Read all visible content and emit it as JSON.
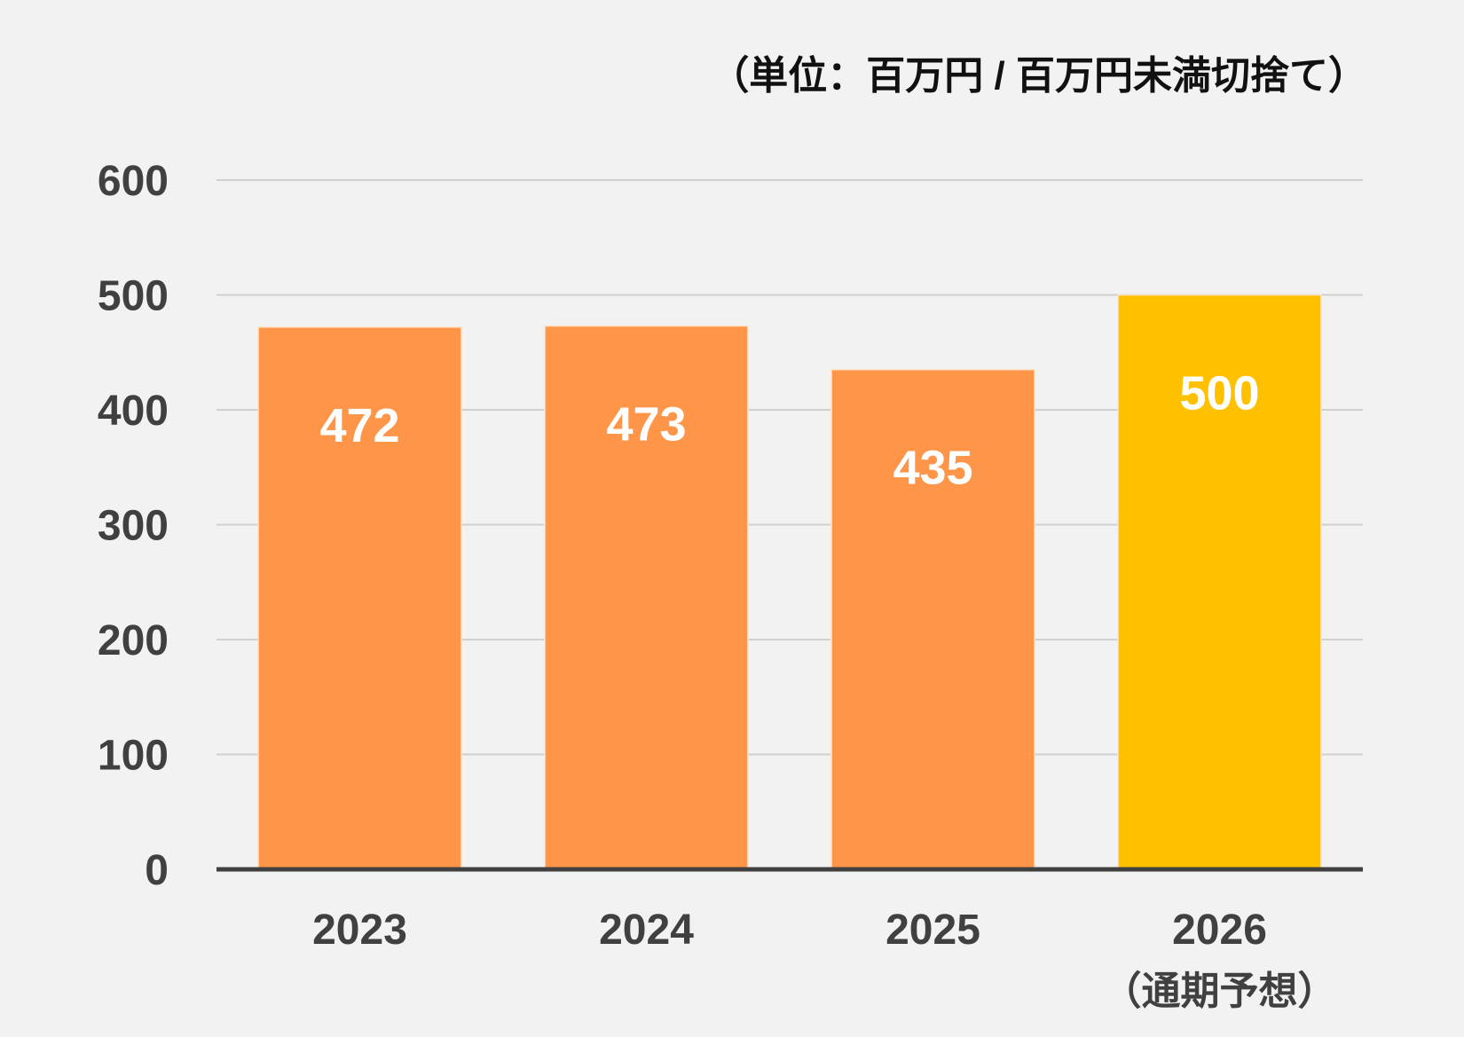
{
  "chart_data": {
    "type": "bar",
    "title": "",
    "unit_note": "（単位：百万円 / 百万円未満切捨て）",
    "categories": [
      "2023",
      "2024",
      "2025",
      "2026"
    ],
    "category_sublabels": [
      "",
      "",
      "",
      "（通期予想）"
    ],
    "values": [
      472,
      473,
      435,
      500
    ],
    "data_labels": [
      "472",
      "473",
      "435",
      "500"
    ],
    "bar_colors": [
      "#FF9548",
      "#FF9548",
      "#FF9548",
      "#FFC000"
    ],
    "xlabel": "",
    "ylabel": "",
    "ylim": [
      0,
      600
    ],
    "yticks": [
      0,
      100,
      200,
      300,
      400,
      500,
      600
    ],
    "ytick_labels": [
      "0",
      "100",
      "200",
      "300",
      "400",
      "500",
      "600"
    ],
    "grid": true,
    "legend": "none"
  }
}
